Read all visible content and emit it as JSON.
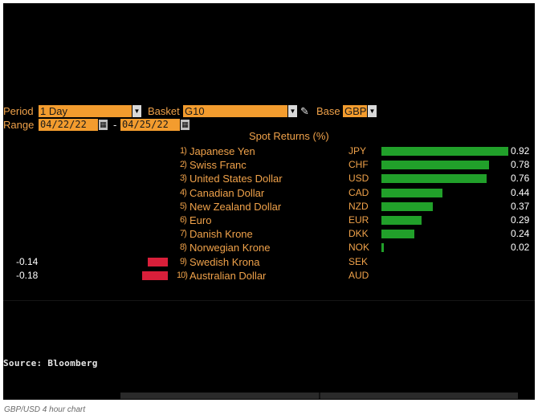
{
  "controls": {
    "period_label": "Period",
    "period_value": "1 Day",
    "basket_label": "Basket",
    "basket_value": "G10",
    "base_label": "Base",
    "base_value": "GBP",
    "range_label": "Range",
    "range_start": "04/22/22",
    "range_separator": "-",
    "range_end": "04/25/22"
  },
  "title": "Spot Returns (%)",
  "rows": [
    {
      "rank": "1)",
      "name": "Japanese Yen",
      "code": "JPY",
      "value": 0.92,
      "value_text": "0.92"
    },
    {
      "rank": "2)",
      "name": "Swiss Franc",
      "code": "CHF",
      "value": 0.78,
      "value_text": "0.78"
    },
    {
      "rank": "3)",
      "name": "United States Dollar",
      "code": "USD",
      "value": 0.76,
      "value_text": "0.76"
    },
    {
      "rank": "4)",
      "name": "Canadian Dollar",
      "code": "CAD",
      "value": 0.44,
      "value_text": "0.44"
    },
    {
      "rank": "5)",
      "name": "New Zealand Dollar",
      "code": "NZD",
      "value": 0.37,
      "value_text": "0.37"
    },
    {
      "rank": "6)",
      "name": "Euro",
      "code": "EUR",
      "value": 0.29,
      "value_text": "0.29"
    },
    {
      "rank": "7)",
      "name": "Danish Krone",
      "code": "DKK",
      "value": 0.24,
      "value_text": "0.24"
    },
    {
      "rank": "8)",
      "name": "Norwegian Krone",
      "code": "NOK",
      "value": 0.02,
      "value_text": "0.02"
    },
    {
      "rank": "9)",
      "name": "Swedish Krona",
      "code": "SEK",
      "value": -0.14,
      "value_text": "-0.14"
    },
    {
      "rank": "10)",
      "name": "Australian Dollar",
      "code": "AUD",
      "value": -0.18,
      "value_text": "-0.18"
    }
  ],
  "colors": {
    "label": "#f0a24a",
    "field": "#f39c2e",
    "positive_bar": "#21a02a",
    "negative_bar": "#d91f3a"
  },
  "icons": {
    "dropdown": "chevron-down-icon",
    "calendar": "calendar-icon",
    "edit": "pencil-icon"
  },
  "source": "Source: Bloomberg",
  "caption": "GBP/USD 4 hour chart"
}
